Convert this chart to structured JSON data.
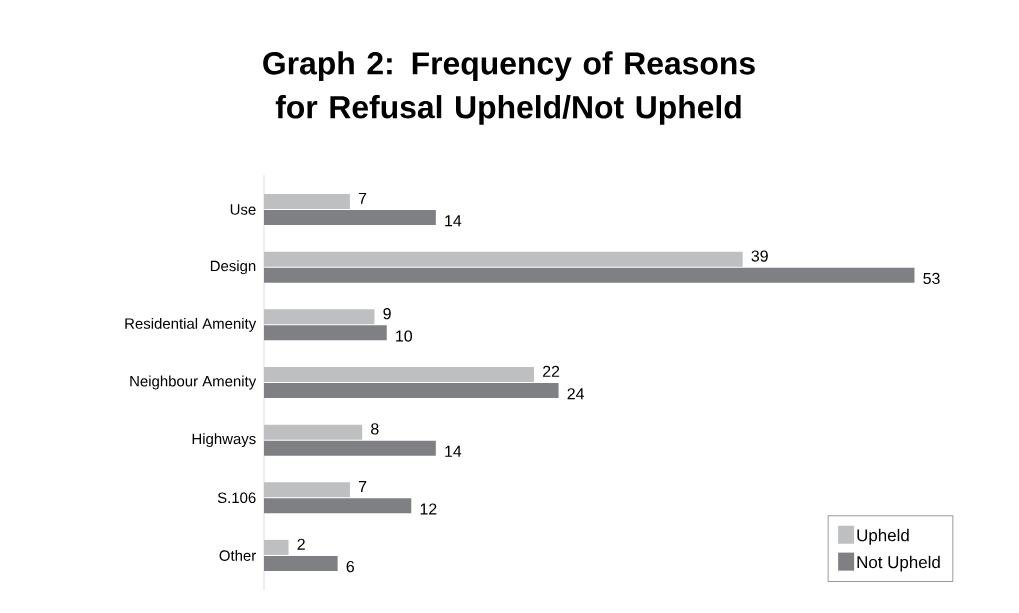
{
  "chart_data": {
    "type": "bar",
    "orientation": "horizontal",
    "title": "Graph 2: Frequency of Reasons for Refusal Upheld/Not Upheld",
    "categories": [
      "Use",
      "Design",
      "Residential Amenity",
      "Neighbour Amenity",
      "Highways",
      "S.106",
      "Other"
    ],
    "series": [
      {
        "name": "Upheld",
        "color": "#bebfc1",
        "values": [
          7,
          39,
          9,
          22,
          8,
          7,
          2
        ]
      },
      {
        "name": "Not Upheld",
        "color": "#7f8083",
        "values": [
          14,
          53,
          10,
          24,
          14,
          12,
          6
        ]
      }
    ],
    "data_labels": true,
    "legend": "bottom right"
  }
}
